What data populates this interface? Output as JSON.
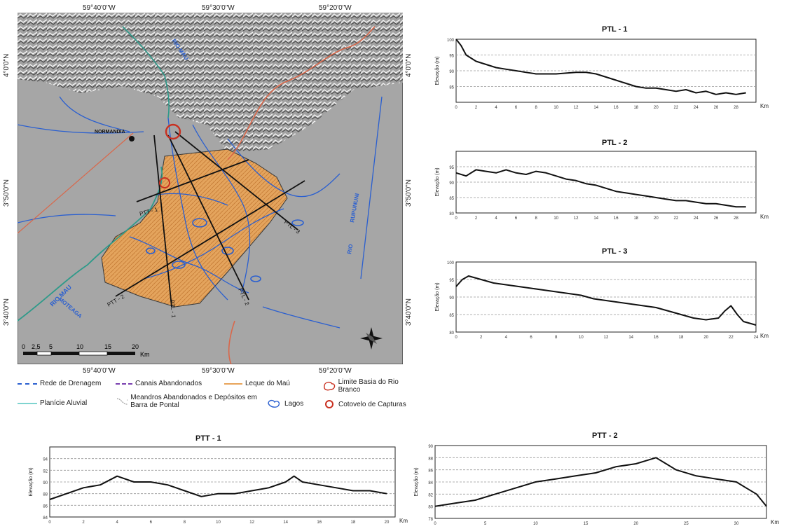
{
  "map": {
    "coords_top": [
      "59°40'0\"W",
      "59°30'0\"W",
      "59°20'0\"W"
    ],
    "coords_bottom": [
      "59°40'0\"W",
      "59°30'0\"W",
      "59°20'0\"W"
    ],
    "coords_left": [
      "4°0'0\"N",
      "3°50'0\"N",
      "3°40'0\"N"
    ],
    "coords_right": [
      "4°0'0\"N",
      "3°50'0\"N",
      "3°40'0\"N"
    ],
    "places": {
      "normandia": "NORMANDIA",
      "rio_mau_upper": "RIO MAU",
      "rio_mau_lower": "RIO MAU",
      "moteaga": "MOTEAGA",
      "rupununi": "RUPUNUNI",
      "rio_right": "RIO"
    },
    "profile_labels": [
      "PTT - 1",
      "PTT - 2",
      "PTL - 1",
      "PTL - 2",
      "PTL - 3"
    ],
    "scale": {
      "ticks": [
        "0",
        "2,5",
        "5",
        "10",
        "15",
        "20"
      ],
      "unit": "Km"
    },
    "colors": {
      "water": "#2a5fd0",
      "fan": "#e8a45a",
      "limit": "#c93020",
      "floodplain": "#2f9a8a"
    }
  },
  "legend": {
    "items": [
      {
        "label": "Rede de Drenagem",
        "symbol": "dashed-blue"
      },
      {
        "label": "Canais Abandonados",
        "symbol": "dashed-purple"
      },
      {
        "label": "Leque do Maú",
        "symbol": "orange-line"
      },
      {
        "label": "Limite Basia do Rio Branco",
        "symbol": "red-outline"
      },
      {
        "label": "Planície Aluvial",
        "symbol": "teal-line"
      },
      {
        "label": "Meandros Abandonados e Depósitos em Barra de Pontal",
        "symbol": "meander"
      },
      {
        "label": "Lagos",
        "symbol": "lake"
      },
      {
        "label": "Cotovelo de Capturas",
        "symbol": "red-circle"
      }
    ]
  },
  "chart_data": [
    {
      "type": "line",
      "title": "PTL - 1",
      "xlabel": "Km",
      "ylabel": "Elevação (m)",
      "xlim": [
        0,
        30
      ],
      "ylim": [
        80,
        100
      ],
      "xticks": [
        "0",
        "2",
        "4",
        "6",
        "8",
        "10",
        "12",
        "14",
        "16",
        "18",
        "20",
        "22",
        "24",
        "26",
        "28"
      ],
      "yticks": [
        "100",
        "95",
        "90",
        "85"
      ],
      "x": [
        0,
        0.5,
        1,
        2,
        3,
        4,
        5,
        6,
        7,
        8,
        10,
        12,
        13,
        14,
        15,
        16,
        17,
        18,
        19,
        20,
        21,
        22,
        23,
        24,
        25,
        26,
        27,
        28,
        29
      ],
      "y": [
        100,
        98,
        95,
        93,
        92,
        91,
        90.5,
        90,
        89.5,
        89,
        89,
        89.5,
        89.5,
        89,
        88,
        87,
        86,
        85,
        84.5,
        84.5,
        84,
        83.5,
        84,
        83,
        83.5,
        82.5,
        83,
        82.5,
        83
      ]
    },
    {
      "type": "line",
      "title": "PTL - 2",
      "xlabel": "Km",
      "ylabel": "Elevação (m)",
      "xlim": [
        0,
        30
      ],
      "ylim": [
        80,
        100
      ],
      "xticks": [
        "0",
        "2",
        "4",
        "6",
        "8",
        "10",
        "12",
        "14",
        "16",
        "18",
        "20",
        "22",
        "24",
        "26",
        "28"
      ],
      "yticks": [
        "95",
        "90",
        "85",
        "80"
      ],
      "x": [
        0,
        1,
        2,
        3,
        4,
        5,
        6,
        7,
        8,
        9,
        10,
        11,
        12,
        13,
        14,
        15,
        16,
        17,
        18,
        19,
        20,
        21,
        22,
        23,
        24,
        25,
        26,
        27,
        28,
        29
      ],
      "y": [
        93,
        92,
        94,
        93.5,
        93,
        94,
        93,
        92.5,
        93.5,
        93,
        92,
        91,
        90.5,
        89.5,
        89,
        88,
        87,
        86.5,
        86,
        85.5,
        85,
        84.5,
        84,
        84,
        83.5,
        83,
        83,
        82.5,
        82,
        82
      ]
    },
    {
      "type": "line",
      "title": "PTL - 3",
      "xlabel": "Km",
      "ylabel": "Elevação (m)",
      "xlim": [
        0,
        24
      ],
      "ylim": [
        80,
        100
      ],
      "xticks": [
        "0",
        "2",
        "4",
        "6",
        "8",
        "10",
        "12",
        "14",
        "16",
        "18",
        "20",
        "22",
        "24"
      ],
      "yticks": [
        "100",
        "95",
        "90",
        "85",
        "80"
      ],
      "x": [
        0,
        0.5,
        1,
        1.5,
        2,
        3,
        4,
        5,
        6,
        7,
        8,
        9,
        10,
        11,
        12,
        13,
        14,
        15,
        16,
        17,
        18,
        19,
        20,
        21,
        21.5,
        22,
        22.5,
        23,
        24
      ],
      "y": [
        93,
        95,
        96,
        95.5,
        95,
        94,
        93.5,
        93,
        92.5,
        92,
        91.5,
        91,
        90.5,
        89.5,
        89,
        88.5,
        88,
        87.5,
        87,
        86,
        85,
        84,
        83.5,
        84,
        86,
        87.5,
        85,
        83,
        82
      ]
    },
    {
      "type": "line",
      "title": "PTT - 1",
      "xlabel": "Km",
      "ylabel": "Elevação (m)",
      "xlim": [
        0,
        20.5
      ],
      "ylim": [
        84,
        96
      ],
      "xticks": [
        "0",
        "2",
        "4",
        "6",
        "8",
        "10",
        "12",
        "14",
        "16",
        "18",
        "20"
      ],
      "yticks": [
        "94",
        "92",
        "90",
        "88",
        "86",
        "84"
      ],
      "x": [
        0,
        1,
        2,
        3,
        4,
        5,
        6,
        7,
        8,
        9,
        10,
        11,
        12,
        13,
        14,
        14.5,
        15,
        16,
        17,
        18,
        19,
        20
      ],
      "y": [
        87,
        88,
        89,
        89.5,
        91,
        90,
        90,
        89.5,
        88.5,
        87.5,
        88,
        88,
        88.5,
        89,
        90,
        91,
        90,
        89.5,
        89,
        88.5,
        88.5,
        88
      ]
    },
    {
      "type": "line",
      "title": "PTT - 2",
      "xlabel": "Km",
      "ylabel": "Elevação (m)",
      "xlim": [
        0,
        33
      ],
      "ylim": [
        78,
        90
      ],
      "xticks": [
        "0",
        "5",
        "10",
        "15",
        "20",
        "25",
        "30"
      ],
      "yticks": [
        "90",
        "88",
        "86",
        "84",
        "82",
        "80",
        "78"
      ],
      "x": [
        0,
        2,
        4,
        6,
        8,
        10,
        12,
        14,
        16,
        18,
        20,
        21,
        22,
        23,
        24,
        26,
        28,
        30,
        31,
        32,
        33
      ],
      "y": [
        80,
        80.5,
        81,
        82,
        83,
        84,
        84.5,
        85,
        85.5,
        86.5,
        87,
        87.5,
        88,
        87,
        86,
        85,
        84.5,
        84,
        83,
        82,
        80
      ]
    }
  ]
}
